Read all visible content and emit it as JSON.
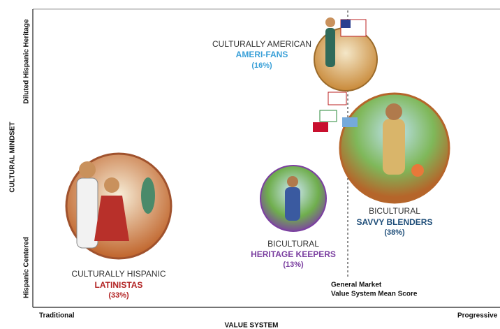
{
  "axes": {
    "y_title": "CULTURAL MINDSET",
    "y_top": "Diluted Hispanic Heritage",
    "y_bottom": "Hispanic Centered",
    "x_left": "Traditional",
    "x_right": "Progressive",
    "x_title": "VALUE SYSTEM"
  },
  "mean_line": {
    "label_1": "General Market",
    "label_2": "Value System Mean Score"
  },
  "segments": [
    {
      "group": "CULTURALLY AMERICAN",
      "name": "AMERI-FANS",
      "share": "(16%)"
    },
    {
      "group": "BICULTURAL",
      "name": "SAVVY BLENDERS",
      "share": "(38%)"
    },
    {
      "group": "BICULTURAL",
      "name": "HERITAGE KEEPERS",
      "share": "(13%)"
    },
    {
      "group": "CULTURALLY HISPANIC",
      "name": "LATINISTAS",
      "share": "(33%)"
    }
  ]
}
